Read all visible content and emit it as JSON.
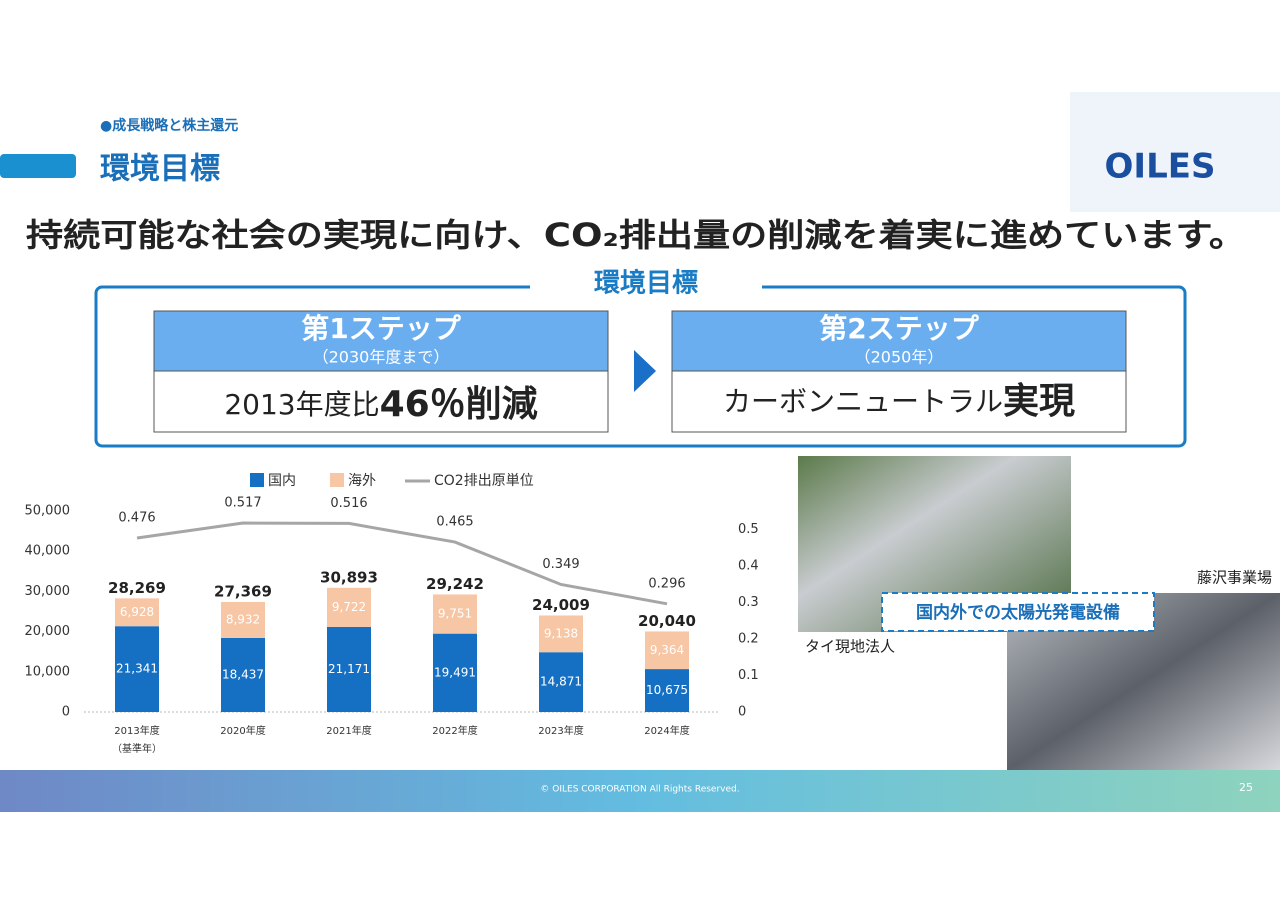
{
  "header": {
    "section": "●成長戦略と株主還元",
    "title": "環境目標",
    "logo": "OILES",
    "headline": "持続可能な社会の実現に向け、CO₂排出量の削減を着実に進めています。"
  },
  "targets": {
    "title": "環境目標",
    "step1": {
      "name": "第1ステップ",
      "period": "（2030年度まで）",
      "body_prefix": "2013年度比",
      "body_emph": "46％削減"
    },
    "step2": {
      "name": "第2ステップ",
      "period": "（2050年）",
      "body_prefix": "カーボンニュートラル",
      "body_emph": "実現"
    }
  },
  "chart_data": {
    "type": "stacked_bar_line",
    "categories": [
      "2013年度",
      "2020年度",
      "2021年度",
      "2022年度",
      "2023年度",
      "2024年度"
    ],
    "base_year_note": "（基準年）",
    "series": [
      {
        "name": "国内",
        "color": "#1570c4",
        "values": [
          21341,
          18437,
          21171,
          19491,
          14871,
          10675
        ],
        "value_labels": [
          "21,341",
          "18,437",
          "21,171",
          "19,491",
          "14,871",
          "10,675"
        ]
      },
      {
        "name": "海外",
        "color": "#f7c6a5",
        "values": [
          6928,
          8932,
          9722,
          9751,
          9138,
          9364
        ],
        "value_labels": [
          "6,928",
          "8,932",
          "9,722",
          "9,751",
          "9,138",
          "9,364"
        ]
      },
      {
        "name": "CO2排出原単位",
        "color": "#a6a6a6",
        "axis": "y2",
        "values": [
          0.476,
          0.517,
          0.516,
          0.465,
          0.349,
          0.296
        ]
      }
    ],
    "totals": [
      28269,
      27369,
      30893,
      29242,
      24009,
      20040
    ],
    "total_labels": [
      "28,269",
      "27,369",
      "30,893",
      "29,242",
      "24,009",
      "20,040"
    ],
    "ylim": [
      0,
      50000
    ],
    "yticks": [
      0,
      {
        "value": 10000,
        "label": "10,000"
      },
      {
        "value": 20000,
        "label": "20,000"
      },
      {
        "value": 30000,
        "label": "30,000"
      },
      {
        "value": 40000,
        "label": "40,000"
      },
      {
        "value": 50000,
        "label": "50,000"
      }
    ],
    "y2lim": [
      0,
      0.55
    ],
    "y2ticks": [
      0,
      0.1,
      0.2,
      0.3,
      0.4,
      0.5
    ]
  },
  "photos": {
    "caption": "国内外での太陽光発電設備",
    "thai": "タイ現地法人",
    "fujisawa": "藤沢事業場"
  },
  "footer": {
    "copyright": "© OILES CORPORATION All Rights Reserved.",
    "page": "25"
  }
}
